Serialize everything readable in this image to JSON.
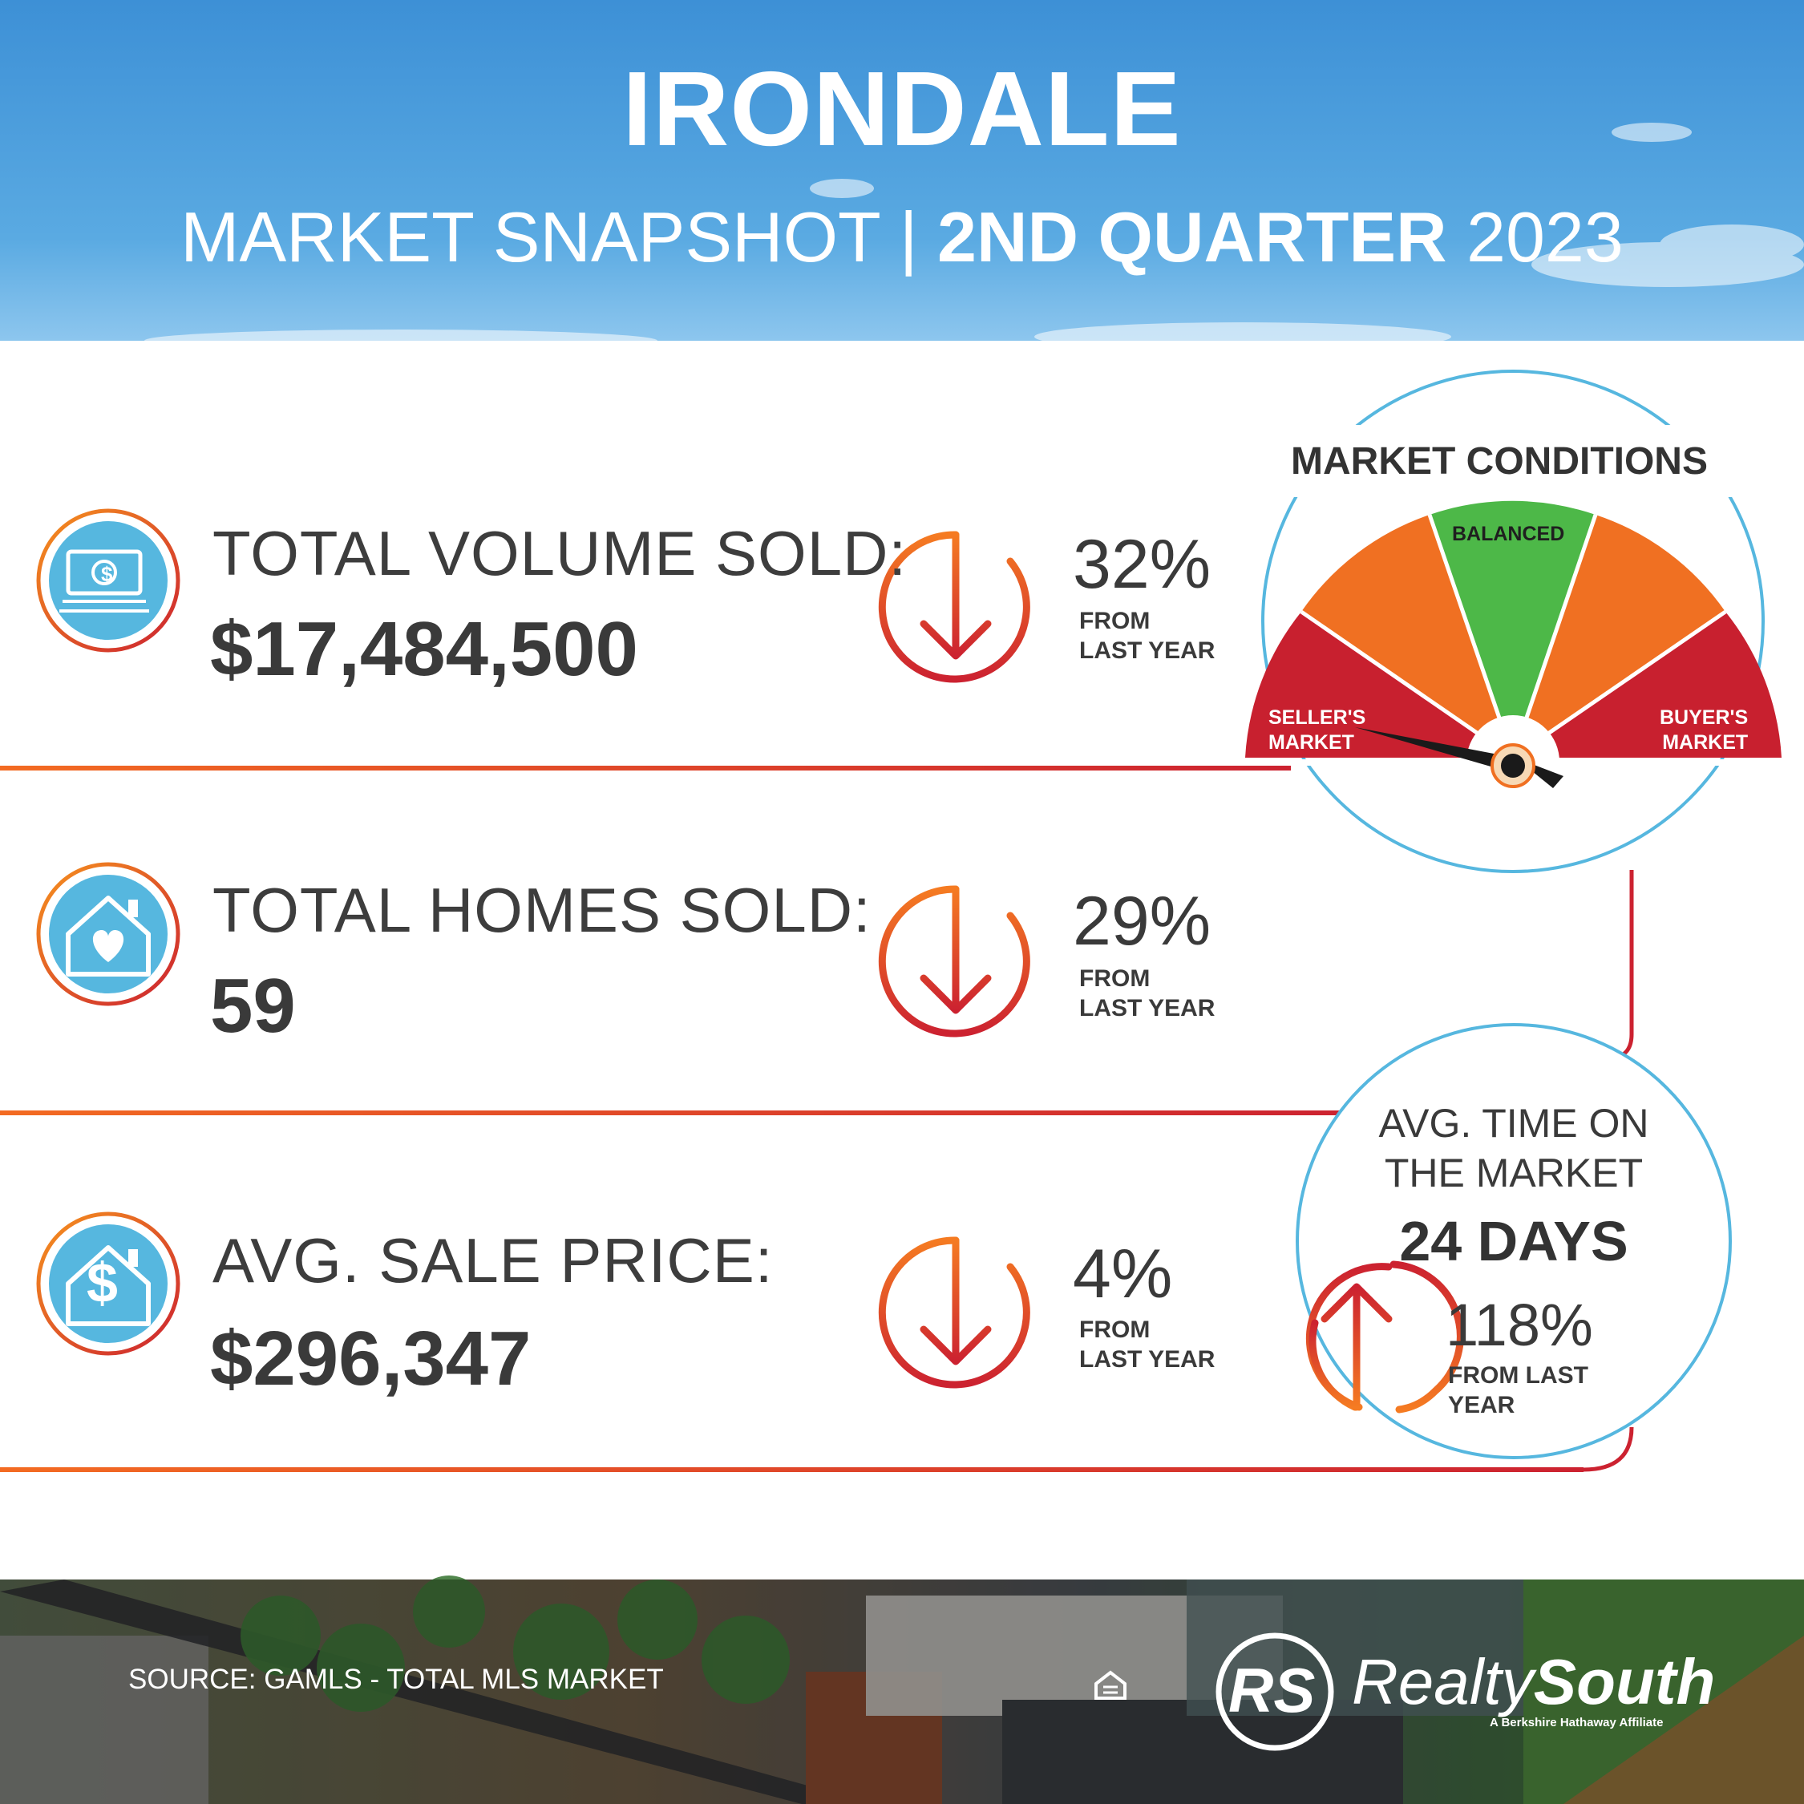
{
  "header": {
    "title": "IRONDALE",
    "subtitle_prefix": "MARKET SNAPSHOT",
    "subtitle_separator": "|",
    "subtitle_bold": "2ND QUARTER",
    "subtitle_year": "2023"
  },
  "stats": [
    {
      "label": "TOTAL VOLUME SOLD:",
      "value": "$17,484,500",
      "direction": "down",
      "change": "32%",
      "change_line1": "FROM",
      "change_line2": "LAST YEAR",
      "icon": "money-icon"
    },
    {
      "label": "TOTAL HOMES SOLD:",
      "value": "59",
      "direction": "down",
      "change": "29%",
      "change_line1": "FROM",
      "change_line2": "LAST YEAR",
      "icon": "house-heart-icon"
    },
    {
      "label": "AVG. SALE PRICE:",
      "value": "$296,347",
      "direction": "down",
      "change": "4%",
      "change_line1": "FROM",
      "change_line2": "LAST YEAR",
      "icon": "house-dollar-icon"
    }
  ],
  "gauge": {
    "title": "MARKET CONDITIONS",
    "balanced": "BALANCED",
    "seller_line1": "SELLER'S",
    "seller_line2": "MARKET",
    "buyer_line1": "BUYER'S",
    "buyer_line2": "MARKET",
    "needle_position": "seller's market"
  },
  "avg_time": {
    "label_line1": "AVG. TIME ON",
    "label_line2": "THE MARKET",
    "value": "24 DAYS",
    "direction": "up",
    "change": "118%",
    "change_line1": "FROM LAST",
    "change_line2": "YEAR"
  },
  "footer": {
    "source": "SOURCE: GAMLS - TOTAL MLS MARKET",
    "logo_mark": "RS",
    "brand_regular": "Realty",
    "brand_bold": "South",
    "tagline": "A Berkshire Hathaway Affiliate",
    "equal_housing_icon": "equal-housing-opportunity-icon"
  },
  "colors": {
    "sky": "#4a9fdc",
    "orange": "#f07022",
    "red": "#c8202f",
    "green": "#4db848",
    "teal": "#56b7df",
    "text": "#3a3a3a"
  }
}
